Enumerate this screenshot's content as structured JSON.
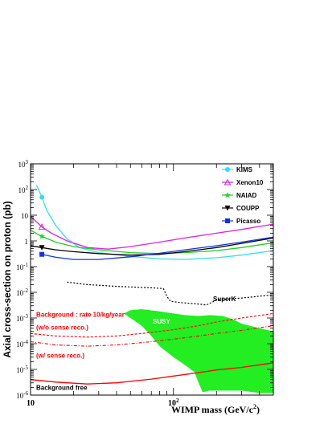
{
  "chart_data": {
    "type": "line",
    "xlabel": "WIMP mass (GeV/c",
    "xlabel_sup": "2",
    "xlabel_close": ")",
    "ylabel": "Axial cross-section on proton (pb)",
    "x_scale": "log",
    "y_scale": "log",
    "xlim": [
      10,
      500
    ],
    "ylim": [
      1e-06,
      1000
    ],
    "x_tick_labels": [
      {
        "label": "10",
        "x": 10
      },
      {
        "label": "10",
        "sup": "2",
        "x": 100
      }
    ],
    "y_tick_labels": [
      {
        "base": "10",
        "exp": "3",
        "y": 1000
      },
      {
        "base": "10",
        "exp": "2",
        "y": 100
      },
      {
        "base": "10",
        "exp": "",
        "y": 10
      },
      {
        "base": "1",
        "exp": "",
        "y": 1
      },
      {
        "base": "10",
        "exp": "-1",
        "y": 0.1
      },
      {
        "base": "10",
        "exp": "-2",
        "y": 0.01
      },
      {
        "base": "10",
        "exp": "-3",
        "y": 0.001
      },
      {
        "base": "10",
        "exp": "-4",
        "y": 0.0001
      },
      {
        "base": "10",
        "exp": "-5",
        "y": 1e-05
      },
      {
        "base": "10",
        "exp": "-6",
        "y": 1e-06
      }
    ],
    "grid": false,
    "legend_position": "top-right",
    "series": [
      {
        "name": "KIMS",
        "color": "#33ddee",
        "marker": "circle",
        "marker_point": [
          12,
          50
        ],
        "points": [
          [
            11,
            150
          ],
          [
            12,
            50
          ],
          [
            13,
            15
          ],
          [
            15,
            4
          ],
          [
            18,
            1.2
          ],
          [
            22,
            0.55
          ],
          [
            30,
            0.35
          ],
          [
            50,
            0.25
          ],
          [
            80,
            0.2
          ],
          [
            120,
            0.19
          ],
          [
            200,
            0.22
          ],
          [
            300,
            0.28
          ],
          [
            500,
            0.42
          ]
        ]
      },
      {
        "name": "Xenon10",
        "color": "#dd22dd",
        "marker": "triangle-open",
        "marker_point": [
          12,
          3.5
        ],
        "points": [
          [
            10,
            9
          ],
          [
            11,
            5.5
          ],
          [
            12,
            3.5
          ],
          [
            14,
            2
          ],
          [
            18,
            1
          ],
          [
            25,
            0.55
          ],
          [
            35,
            0.48
          ],
          [
            50,
            0.6
          ],
          [
            80,
            0.9
          ],
          [
            120,
            1.3
          ],
          [
            200,
            2
          ],
          [
            300,
            2.8
          ],
          [
            500,
            4.5
          ]
        ]
      },
      {
        "name": "NAIAD",
        "color": "#22cc22",
        "marker": "star",
        "marker_point": [
          12,
          1.5
        ],
        "points": [
          [
            10,
            2.6
          ],
          [
            12,
            1.5
          ],
          [
            15,
            0.9
          ],
          [
            20,
            0.6
          ],
          [
            30,
            0.45
          ],
          [
            50,
            0.35
          ],
          [
            80,
            0.32
          ],
          [
            120,
            0.35
          ],
          [
            200,
            0.42
          ],
          [
            300,
            0.55
          ],
          [
            500,
            0.85
          ]
        ]
      },
      {
        "name": "COUPP",
        "color": "#000000",
        "marker": "triangle-down",
        "marker_point": [
          12,
          0.55
        ],
        "points": [
          [
            10,
            0.65
          ],
          [
            12,
            0.55
          ],
          [
            15,
            0.45
          ],
          [
            20,
            0.38
          ],
          [
            30,
            0.32
          ],
          [
            50,
            0.28
          ],
          [
            80,
            0.3
          ],
          [
            120,
            0.38
          ],
          [
            200,
            0.55
          ],
          [
            300,
            0.8
          ],
          [
            500,
            1.3
          ]
        ]
      },
      {
        "name": "Picasso",
        "color": "#1133dd",
        "marker": "square",
        "marker_point": [
          12,
          0.3
        ],
        "points": [
          [
            12,
            0.3
          ],
          [
            15,
            0.23
          ],
          [
            20,
            0.19
          ],
          [
            30,
            0.19
          ],
          [
            50,
            0.24
          ],
          [
            80,
            0.33
          ],
          [
            120,
            0.45
          ],
          [
            200,
            0.65
          ],
          [
            300,
            0.9
          ],
          [
            500,
            1.4
          ]
        ]
      }
    ],
    "superk": {
      "label": "SuperK",
      "color": "#000000",
      "points": [
        [
          18,
          0.025
        ],
        [
          25,
          0.02
        ],
        [
          40,
          0.017
        ],
        [
          70,
          0.015
        ],
        [
          85,
          0.014
        ],
        [
          90,
          0.007
        ],
        [
          95,
          0.0045
        ],
        [
          110,
          0.004
        ],
        [
          150,
          0.0035
        ],
        [
          170,
          0.0032
        ],
        [
          200,
          0.005
        ],
        [
          300,
          0.006
        ],
        [
          500,
          0.008
        ]
      ]
    },
    "background_rate": {
      "label": "Background : rate 10/kg/year",
      "color": "#ff0000",
      "points": [
        [
          10,
          0.00025
        ],
        [
          15,
          0.0002
        ],
        [
          25,
          0.00018
        ],
        [
          40,
          0.0002
        ],
        [
          60,
          0.00025
        ],
        [
          100,
          0.00035
        ],
        [
          150,
          0.0005
        ],
        [
          200,
          0.0007
        ],
        [
          300,
          0.001
        ],
        [
          500,
          0.0015
        ]
      ]
    },
    "wo_sense_reco": {
      "label": "(w/o sense reco.)",
      "color": "#ff0000"
    },
    "w_sense_reco": {
      "label": "(w/ sense reco.)",
      "color": "#ff0000",
      "points": [
        [
          10,
          0.00012
        ],
        [
          15,
          9e-05
        ],
        [
          25,
          8e-05
        ],
        [
          40,
          9e-05
        ],
        [
          60,
          0.00011
        ],
        [
          100,
          0.00015
        ],
        [
          150,
          0.0002
        ],
        [
          200,
          0.00025
        ],
        [
          300,
          0.00033
        ],
        [
          500,
          0.0005
        ]
      ]
    },
    "background_free": {
      "label": "Background free",
      "color": "#ff0000",
      "points": [
        [
          10,
          4e-06
        ],
        [
          15,
          3.2e-06
        ],
        [
          25,
          2.7e-06
        ],
        [
          40,
          3e-06
        ],
        [
          70,
          4.2e-06
        ],
        [
          100,
          5.5e-06
        ],
        [
          150,
          7.5e-06
        ],
        [
          200,
          9.5e-06
        ],
        [
          300,
          1.2e-05
        ],
        [
          500,
          1.8e-05
        ]
      ]
    },
    "susy": {
      "label": "SUSY",
      "color": "#22ee22",
      "outline": [
        [
          45,
          0.0015
        ],
        [
          50,
          0.002
        ],
        [
          60,
          0.0022
        ],
        [
          80,
          0.0018
        ],
        [
          100,
          0.0015
        ],
        [
          120,
          0.0013
        ],
        [
          150,
          0.0012
        ],
        [
          180,
          0.0013
        ],
        [
          220,
          0.0012
        ],
        [
          260,
          0.0009
        ],
        [
          300,
          0.0006
        ],
        [
          400,
          0.0004
        ],
        [
          500,
          0.0003
        ],
        [
          500,
          1.2e-06
        ],
        [
          400,
          1.2e-06
        ],
        [
          300,
          1.5e-06
        ],
        [
          220,
          1.5e-06
        ],
        [
          200,
          1.5e-06
        ],
        [
          180,
          1.5e-06
        ],
        [
          160,
          1.3e-06
        ],
        [
          150,
          3e-06
        ],
        [
          140,
          8e-06
        ],
        [
          120,
          1.5e-05
        ],
        [
          100,
          3e-05
        ],
        [
          80,
          8e-05
        ],
        [
          70,
          0.0002
        ],
        [
          60,
          0.0005
        ],
        [
          50,
          0.001
        ]
      ]
    }
  }
}
